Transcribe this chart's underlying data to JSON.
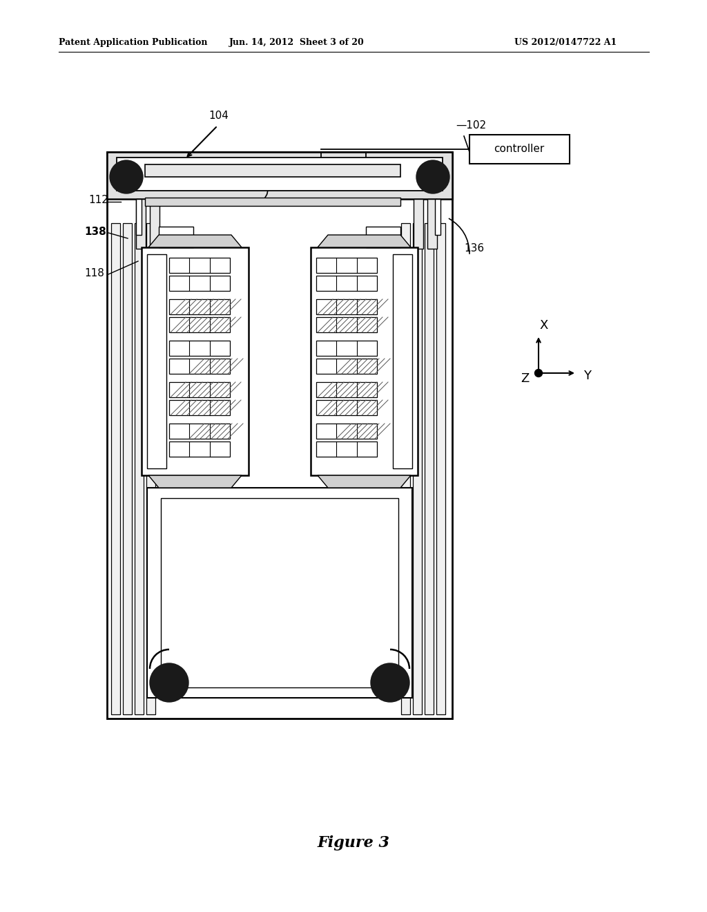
{
  "bg_color": "#ffffff",
  "header_left": "Patent Application Publication",
  "header_mid": "Jun. 14, 2012  Sheet 3 of 20",
  "header_right": "US 2012/0147722 A1",
  "figure_caption": "Figure 3"
}
